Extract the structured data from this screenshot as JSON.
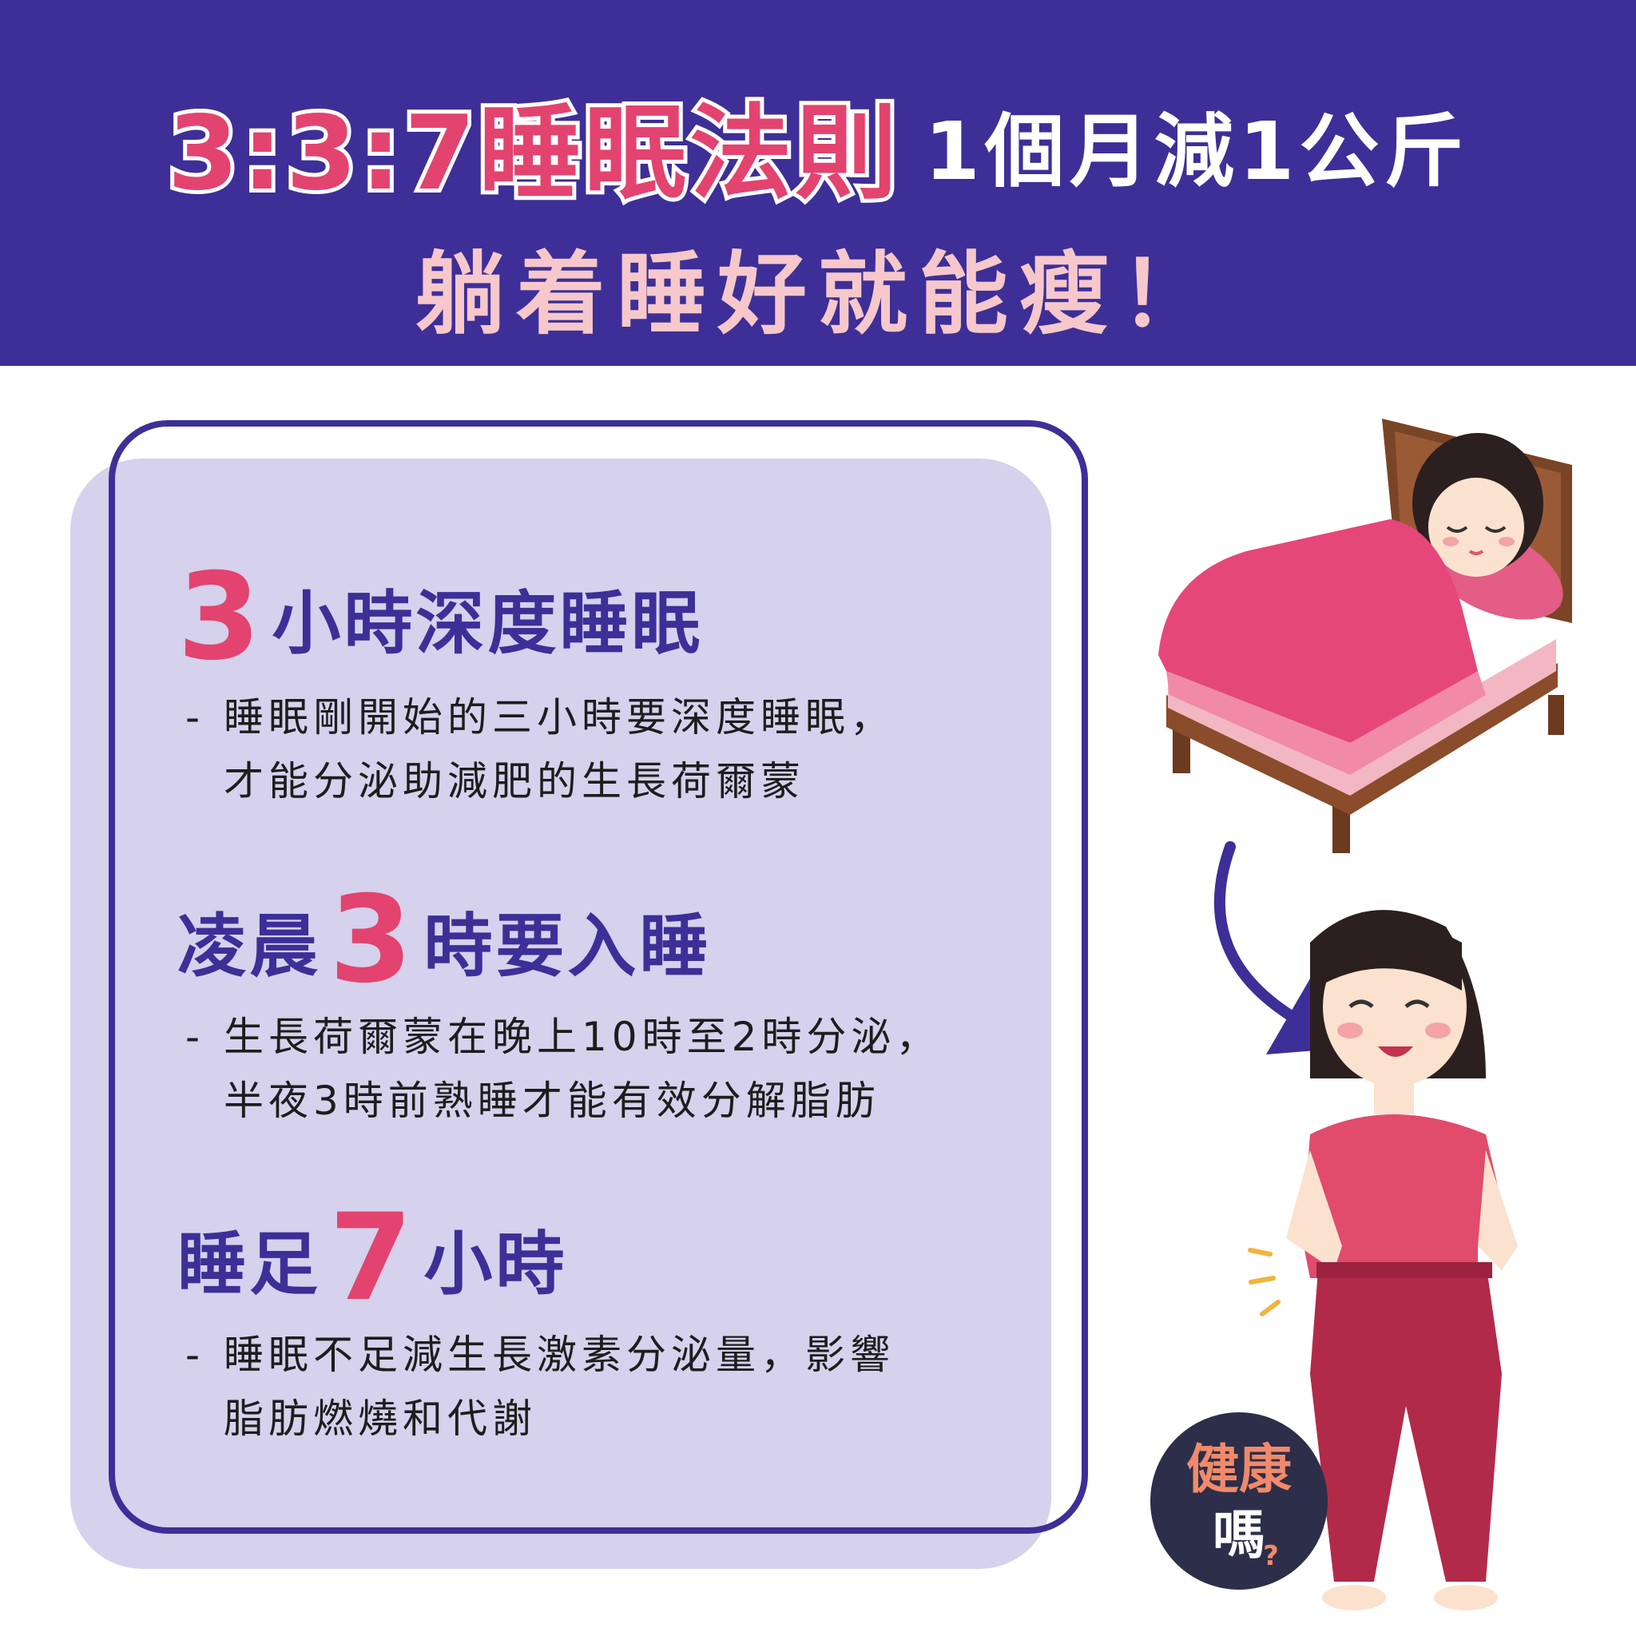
{
  "header": {
    "title_main": "3:3:7睡眠法則",
    "title_side": "1個月減1公斤",
    "subtitle": "躺着睡好就能瘦！"
  },
  "sections": [
    {
      "title_pre": "",
      "number": "3",
      "title_post": "小時深度睡眠",
      "lines": [
        "睡眠剛開始的三小時要深度睡眠，",
        "才能分泌助減肥的生長荷爾蒙"
      ]
    },
    {
      "title_pre": "凌晨",
      "number": "3",
      "title_post": "時要入睡",
      "lines": [
        "生長荷爾蒙在晚上10時至2時分泌，",
        "半夜3時前熟睡才能有效分解脂肪"
      ]
    },
    {
      "title_pre": "睡足",
      "number": "7",
      "title_post": "小時",
      "lines": [
        "睡眠不足減生長激素分泌量，影響",
        "脂肪燃燒和代謝"
      ]
    }
  ],
  "badge": {
    "line1": "健康",
    "line2": "嗎",
    "mark": "?"
  },
  "illustrations": {
    "sleeping_woman": "woman-sleeping-in-bed-illustration",
    "happy_woman": "woman-with-loose-pants-illustration",
    "arrow": "curved-arrow-icon"
  },
  "colors": {
    "header_bg": "#3d2f97",
    "accent_pink": "#e3436f",
    "subtitle_pink": "#f6c8cc",
    "card_bg": "#d6d1ec"
  }
}
